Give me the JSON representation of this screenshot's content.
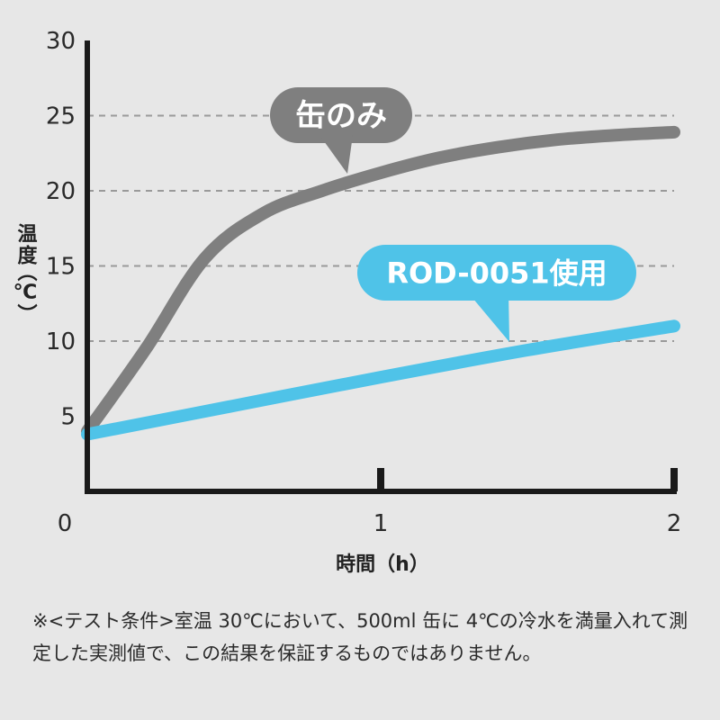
{
  "chart_data": {
    "type": "line",
    "ylabel_main": "温度",
    "ylabel_unit": "（℃）",
    "xlabel": "時間（h）",
    "xlim": [
      0,
      2
    ],
    "ylim": [
      0,
      30
    ],
    "x_ticks": [
      "0",
      "1",
      "2"
    ],
    "y_ticks": [
      5,
      10,
      15,
      20,
      25,
      30
    ],
    "grid": "horizontal dashed",
    "series": [
      {
        "name": "缶のみ",
        "color": "#7f7f7f",
        "x": [
          0,
          0.2,
          0.4,
          0.6,
          0.8,
          1.0,
          1.2,
          1.4,
          1.6,
          1.8,
          2.0
        ],
        "y": [
          4.0,
          9.5,
          15.5,
          18.5,
          20.0,
          21.2,
          22.2,
          22.9,
          23.4,
          23.7,
          23.9
        ]
      },
      {
        "name": "ROD-0051使用",
        "color": "#4fc3e8",
        "x": [
          0,
          0.5,
          1.0,
          1.5,
          2.0
        ],
        "y": [
          3.8,
          5.7,
          7.6,
          9.4,
          11.0
        ]
      }
    ]
  },
  "note": "※<テスト条件>室温 30℃において、500ml 缶に 4℃の冷水を満量入れて測定した実測値で、この結果を保証するものではありません。"
}
